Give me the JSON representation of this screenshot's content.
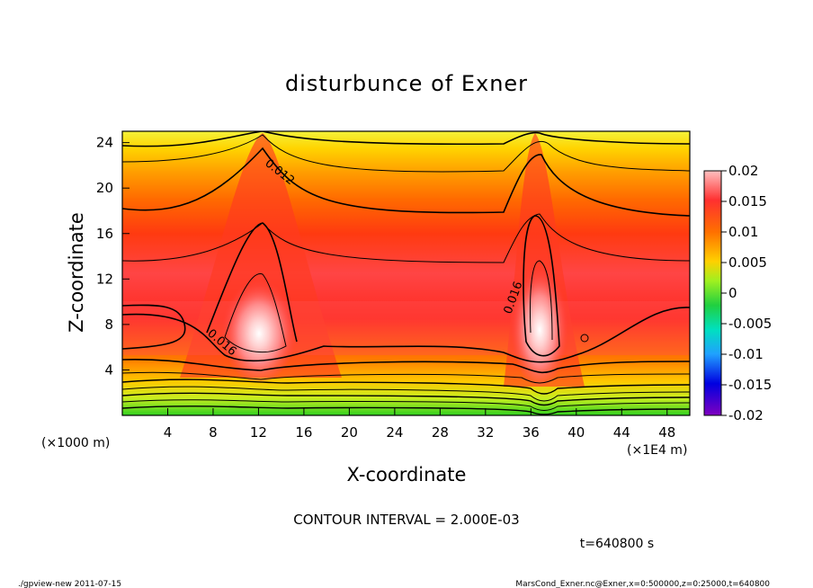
{
  "chart_data": {
    "type": "heatmap",
    "title": "disturbunce of Exner",
    "xlabel": "X-coordinate",
    "ylabel": "Z-coordinate",
    "x_unit_left": "(×1000 m)",
    "x_unit_right": "(×1E4 m)",
    "xlim": [
      0,
      50
    ],
    "ylim": [
      0,
      25
    ],
    "xticks": [
      "4",
      "8",
      "12",
      "16",
      "20",
      "24",
      "28",
      "32",
      "36",
      "40",
      "44",
      "48"
    ],
    "yticks": [
      "4",
      "8",
      "12",
      "16",
      "20",
      "24"
    ],
    "colorbar": {
      "ticks": [
        "0.02",
        "0.015",
        "0.01",
        "0.005",
        "0",
        "-0.005",
        "-0.01",
        "-0.015",
        "-0.02"
      ],
      "range": [
        -0.02,
        0.02
      ]
    },
    "contour_labels": [
      "0.012",
      "0.016",
      "0.016"
    ],
    "contour_interval_text": "CONTOUR INTERVAL = 2.000E-03",
    "time_text": "t=640800 s",
    "features": [
      {
        "x": 12,
        "z": 7.5,
        "value": 0.02
      },
      {
        "x": 37,
        "z": 7.5,
        "value": 0.02
      }
    ]
  },
  "footer": {
    "left": "./gpview-new 2011-07-15",
    "right": "MarsCond_Exner.nc@Exner,x=0:500000,z=0:25000,t=640800"
  }
}
